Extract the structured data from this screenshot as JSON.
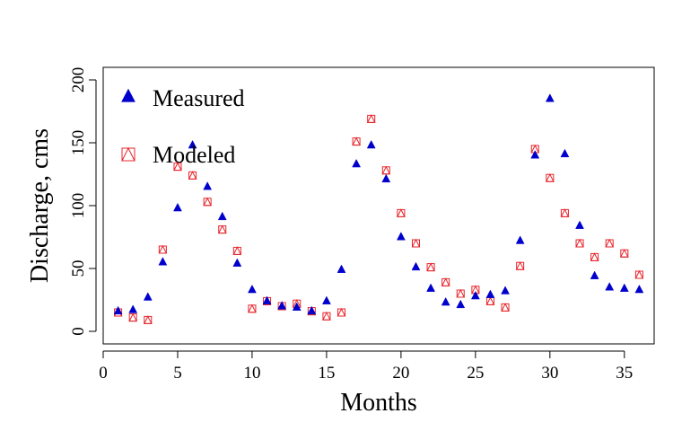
{
  "chart_data": {
    "type": "scatter",
    "title": "",
    "xlabel": "Months",
    "ylabel": "Discharge, cms",
    "xlim": [
      0,
      37
    ],
    "ylim": [
      -10,
      210
    ],
    "xticks": [
      0,
      5,
      10,
      15,
      20,
      25,
      30,
      35
    ],
    "yticks": [
      0,
      50,
      100,
      150,
      200
    ],
    "grid": false,
    "legend_position": "top-left",
    "series": [
      {
        "name": "Measured",
        "marker": "filled-triangle",
        "color": "#0000CD",
        "x": [
          1,
          2,
          3,
          4,
          5,
          6,
          7,
          8,
          9,
          10,
          11,
          12,
          13,
          14,
          15,
          16,
          17,
          18,
          19,
          20,
          21,
          22,
          23,
          24,
          25,
          26,
          27,
          28,
          29,
          30,
          31,
          32,
          33,
          34,
          35,
          36
        ],
        "y": [
          16,
          17,
          27,
          55,
          98,
          148,
          115,
          91,
          54,
          33,
          24,
          20,
          19,
          16,
          24,
          49,
          133,
          148,
          121,
          75,
          51,
          34,
          23,
          21,
          28,
          29,
          32,
          72,
          140,
          185,
          141,
          84,
          44,
          35,
          34,
          33
        ]
      },
      {
        "name": "Modeled",
        "marker": "square-with-triangle",
        "color": "#E8242B",
        "x": [
          1,
          2,
          3,
          4,
          5,
          6,
          7,
          8,
          9,
          10,
          11,
          12,
          13,
          14,
          15,
          16,
          17,
          18,
          19,
          20,
          21,
          22,
          23,
          24,
          25,
          26,
          27,
          28,
          29,
          30,
          31,
          32,
          33,
          34,
          35,
          36
        ],
        "y": [
          15,
          11,
          9,
          65,
          131,
          124,
          103,
          81,
          64,
          18,
          24,
          20,
          22,
          16,
          12,
          15,
          151,
          169,
          128,
          94,
          70,
          51,
          39,
          30,
          33,
          24,
          19,
          52,
          145,
          122,
          94,
          70,
          59,
          70,
          62,
          45
        ]
      }
    ]
  }
}
